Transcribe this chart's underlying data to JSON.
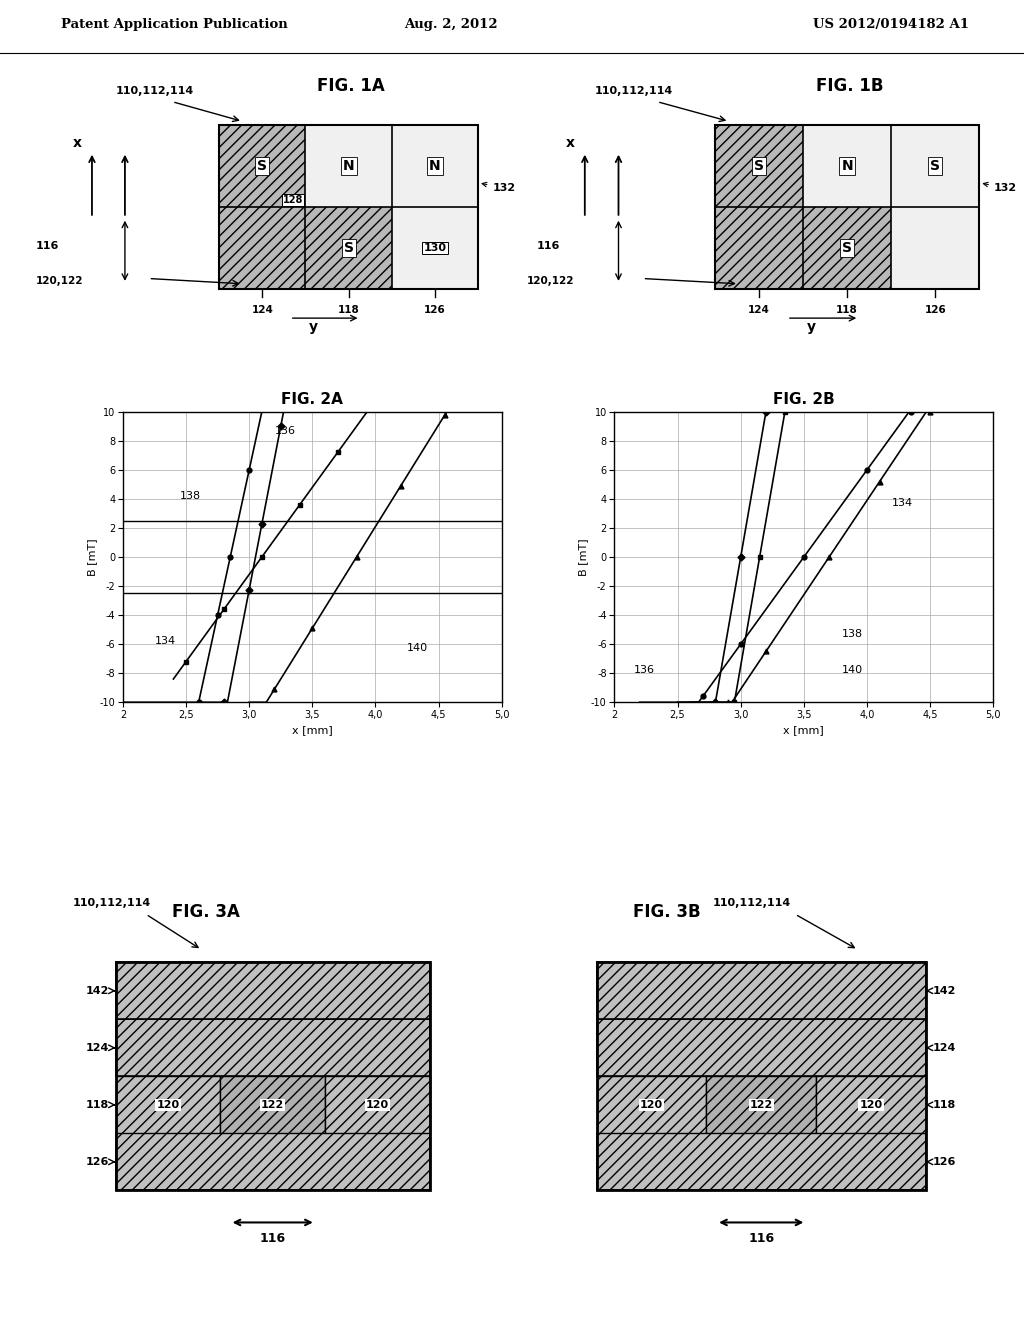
{
  "header_left": "Patent Application Publication",
  "header_center": "Aug. 2, 2012",
  "header_right": "US 2012/0194182 A1",
  "bg_color": "#ffffff",
  "fig1a_title": "FIG. 1A",
  "fig1b_title": "FIG. 1B",
  "fig2a_title": "FIG. 2A",
  "fig2b_title": "FIG. 2B",
  "fig3a_title": "FIG. 3A",
  "fig3b_title": "FIG. 3B",
  "hatch_gray": "#b8b8b8",
  "white_cell": "#f5f5f5",
  "medium_gray": "#c0c0c0"
}
